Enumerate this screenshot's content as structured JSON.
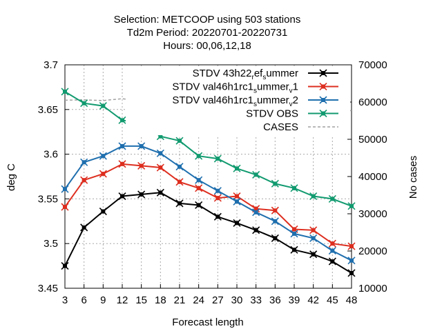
{
  "chart_data": {
    "type": "line",
    "title_lines": [
      "Selection: METCOOP using   503 stations",
      "Td2m   Period: 20220701-20220731",
      "Hours:  00,06,12,18"
    ],
    "xlabel": "Forecast length",
    "ylabel": "deg C",
    "y2label": "No cases",
    "categories": [
      "3",
      "6",
      "9",
      "12",
      "15",
      "18",
      "21",
      "24",
      "27",
      "30",
      "33",
      "36",
      "39",
      "42",
      "45",
      "48"
    ],
    "x": [
      3,
      6,
      9,
      12,
      15,
      18,
      21,
      24,
      27,
      30,
      33,
      36,
      39,
      42,
      45,
      48
    ],
    "xlim": [
      3,
      48
    ],
    "ylim": [
      3.45,
      3.7
    ],
    "y_ticks": [
      "3.45",
      "3.5",
      "3.55",
      "3.6",
      "3.65",
      "3.7"
    ],
    "y2lim": [
      10000,
      70000
    ],
    "y2_ticks": [
      "10000",
      "20000",
      "30000",
      "40000",
      "50000",
      "60000",
      "70000"
    ],
    "grid": true,
    "legend_position": "top-right",
    "series": [
      {
        "name": "STDV 43h22_ref_summer",
        "label_parts": [
          [
            "STDV 43h22",
            ""
          ],
          [
            "r",
            "sub"
          ],
          [
            "ef",
            ""
          ],
          [
            "s",
            "sub"
          ],
          [
            "ummer",
            ""
          ]
        ],
        "color": "#000000",
        "axis": "y",
        "style": "line-marker",
        "values": [
          3.475,
          3.518,
          3.536,
          3.553,
          3.555,
          3.557,
          3.545,
          3.543,
          3.53,
          3.523,
          3.515,
          3.506,
          3.493,
          3.488,
          3.48,
          3.467
        ]
      },
      {
        "name": "STDV val46h1rc1_summer_v1",
        "label_parts": [
          [
            "STDV val46h1rc1",
            ""
          ],
          [
            "s",
            "sub"
          ],
          [
            "ummer",
            ""
          ],
          [
            "v",
            "sub"
          ],
          [
            "1",
            ""
          ]
        ],
        "color": "#dd2e1f",
        "axis": "y",
        "style": "line-marker",
        "values": [
          3.541,
          3.571,
          3.578,
          3.589,
          3.587,
          3.585,
          3.569,
          3.562,
          3.551,
          3.553,
          3.539,
          3.537,
          3.516,
          3.515,
          3.5,
          3.497
        ]
      },
      {
        "name": "STDV val46h1rc1_summer_v2",
        "label_parts": [
          [
            "STDV val46h1rc1",
            ""
          ],
          [
            "s",
            "sub"
          ],
          [
            "ummer",
            ""
          ],
          [
            "v",
            "sub"
          ],
          [
            "2",
            ""
          ]
        ],
        "color": "#1f6fae",
        "axis": "y",
        "style": "line-marker",
        "values": [
          3.561,
          3.591,
          3.598,
          3.609,
          3.609,
          3.601,
          3.586,
          3.571,
          3.559,
          3.547,
          3.535,
          3.525,
          3.511,
          3.506,
          3.492,
          3.481
        ]
      },
      {
        "name": "STDV OBS",
        "label_parts": [
          [
            "STDV OBS",
            ""
          ]
        ],
        "color": "#119a6f",
        "axis": "y",
        "style": "line-marker",
        "values": [
          3.67,
          3.657,
          3.654,
          3.638,
          3.635,
          3.62,
          3.615,
          3.598,
          3.595,
          3.584,
          3.577,
          3.567,
          3.562,
          3.553,
          3.55,
          3.542
        ]
      },
      {
        "name": "CASES",
        "label_parts": [
          [
            "CASES",
            ""
          ]
        ],
        "color": "#a0a0a0",
        "axis": "y2",
        "style": "dashed",
        "values": [
          60500,
          60600,
          60400,
          60900,
          60200,
          60500,
          60000,
          59700,
          59500,
          59300,
          59000,
          58700,
          58300,
          58000,
          57800,
          57700
        ]
      }
    ]
  }
}
